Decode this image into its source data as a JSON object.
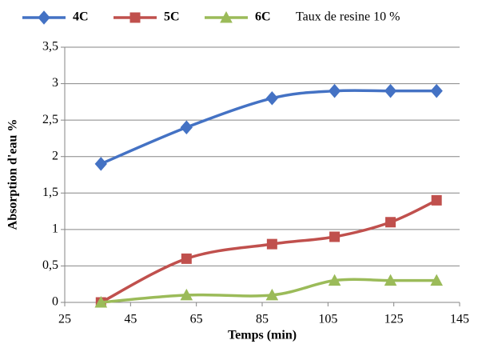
{
  "chart_data": {
    "type": "line",
    "annotation": "Taux de resine 10 %",
    "x_label": "Temps  (min)",
    "y_label": "Absorption d'eau %",
    "x": [
      36,
      62,
      88,
      107,
      124,
      138
    ],
    "series": [
      {
        "name": "4C",
        "color": "#4472c4",
        "marker": "diamond",
        "values": [
          1.9,
          2.4,
          2.8,
          2.9,
          2.9,
          2.9
        ]
      },
      {
        "name": "5C",
        "color": "#c0504d",
        "marker": "square",
        "values": [
          0,
          0.6,
          0.8,
          0.9,
          1.1,
          1.4
        ]
      },
      {
        "name": "6C",
        "color": "#9bbb59",
        "marker": "triangle",
        "values": [
          0,
          0.1,
          0.1,
          0.3,
          0.3,
          0.3
        ]
      }
    ],
    "xlim": [
      25,
      145
    ],
    "xticks": [
      25,
      45,
      65,
      85,
      105,
      125,
      145
    ],
    "ylim": [
      0,
      3.5
    ],
    "yticks": [
      0,
      {
        "value": 0.5,
        "label": "0,5"
      },
      1,
      {
        "value": 1.5,
        "label": "1,5"
      },
      2,
      {
        "value": 2.5,
        "label": "2,5"
      },
      3,
      {
        "value": 3.5,
        "label": "3,5"
      }
    ],
    "grid": true,
    "smooth": true,
    "legend": "top"
  }
}
